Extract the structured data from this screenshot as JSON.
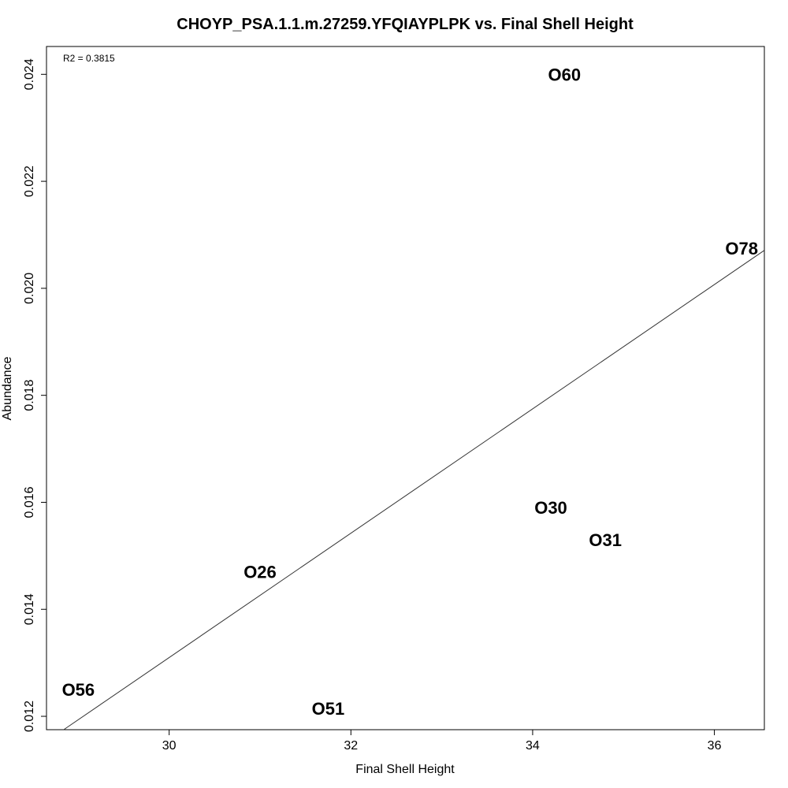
{
  "chart_data": {
    "type": "scatter",
    "title": "CHOYP_PSA.1.1.m.27259.YFQIAYPLPK vs. Final Shell Height",
    "xlabel": "Final Shell Height",
    "ylabel": "Abundance",
    "annotation": "R2 = 0.3815",
    "xlim": [
      28.65,
      36.55
    ],
    "ylim": [
      0.01175,
      0.02452
    ],
    "x_ticks": [
      30,
      32,
      34,
      36
    ],
    "x_tick_labels": [
      "30",
      "32",
      "34",
      "36"
    ],
    "y_ticks": [
      0.012,
      0.014,
      0.016,
      0.018,
      0.02,
      0.022,
      0.024
    ],
    "y_tick_labels": [
      "0.012",
      "0.014",
      "0.016",
      "0.018",
      "0.020",
      "0.022",
      "0.024"
    ],
    "points": [
      {
        "label": "O56",
        "x": 29.0,
        "y": 0.0125
      },
      {
        "label": "O51",
        "x": 31.75,
        "y": 0.01215
      },
      {
        "label": "O26",
        "x": 31.0,
        "y": 0.0147
      },
      {
        "label": "O30",
        "x": 34.2,
        "y": 0.0159
      },
      {
        "label": "O31",
        "x": 34.8,
        "y": 0.0153
      },
      {
        "label": "O60",
        "x": 34.35,
        "y": 0.024
      },
      {
        "label": "O78",
        "x": 36.3,
        "y": 0.02075
      }
    ],
    "regression_line": {
      "x": [
        28.65,
        36.55
      ],
      "y": [
        0.01153,
        0.02071
      ]
    },
    "grid": false,
    "legend": "none"
  }
}
